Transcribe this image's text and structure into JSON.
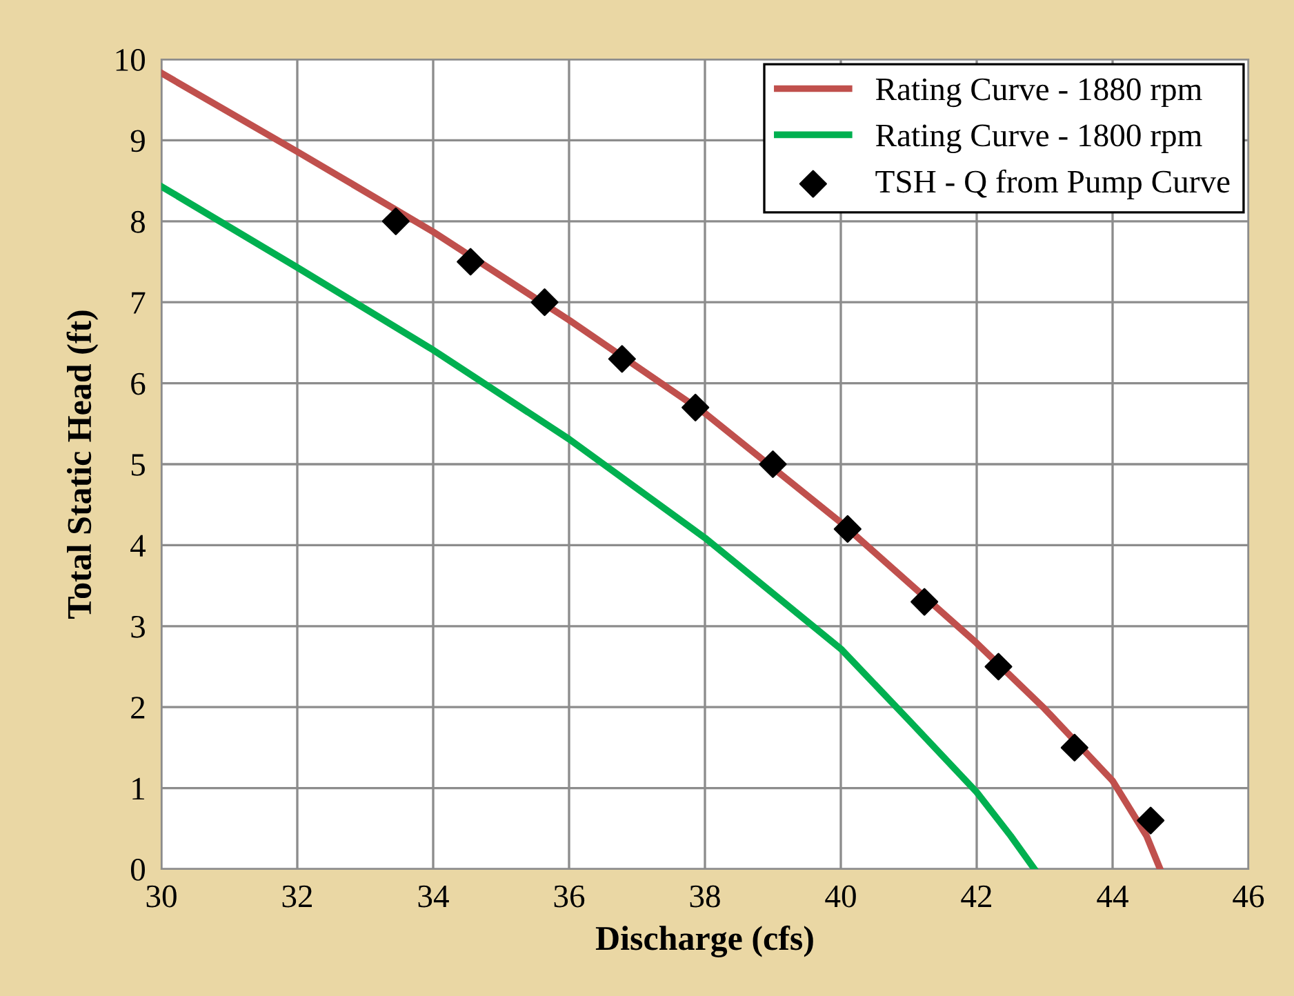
{
  "chart_data": {
    "type": "line",
    "xlabel": "Discharge (cfs)",
    "ylabel": "Total Static Head (ft)",
    "xlim": [
      30,
      46
    ],
    "xticks": [
      30,
      32,
      34,
      36,
      38,
      40,
      42,
      44,
      46
    ],
    "ylim": [
      0,
      10
    ],
    "yticks": [
      0,
      1,
      2,
      3,
      4,
      5,
      6,
      7,
      8,
      9,
      10
    ],
    "grid": true,
    "legend": "top right",
    "series": [
      {
        "name": "Rating Curve - 1880 rpm",
        "color": "#c0504d",
        "marker": "none",
        "line_style": "solid",
        "x": [
          30,
          32,
          34,
          36,
          38,
          40,
          42,
          43,
          44,
          44.5,
          44.7
        ],
        "values": [
          9.83,
          8.86,
          7.87,
          6.78,
          5.63,
          4.28,
          2.79,
          1.98,
          1.09,
          0.41,
          0
        ]
      },
      {
        "name": "Rating Curve - 1800 rpm",
        "color": "#00b050",
        "marker": "none",
        "line_style": "solid",
        "x": [
          30,
          32,
          34,
          36,
          38,
          40,
          41,
          42,
          42.5,
          42.85
        ],
        "values": [
          8.43,
          7.43,
          6.41,
          5.31,
          4.09,
          2.72,
          1.84,
          0.95,
          0.41,
          0
        ]
      },
      {
        "name": "TSH - Q from Pump Curve",
        "type": "scatter",
        "color": "#000000",
        "marker": "diamond",
        "x": [
          33.45,
          34.55,
          35.64,
          36.78,
          37.86,
          39.0,
          40.1,
          41.23,
          42.32,
          43.44,
          44.56
        ],
        "values": [
          8.0,
          7.5,
          7.0,
          6.3,
          5.7,
          5.0,
          4.2,
          3.3,
          2.5,
          1.5,
          0.6
        ]
      }
    ]
  }
}
